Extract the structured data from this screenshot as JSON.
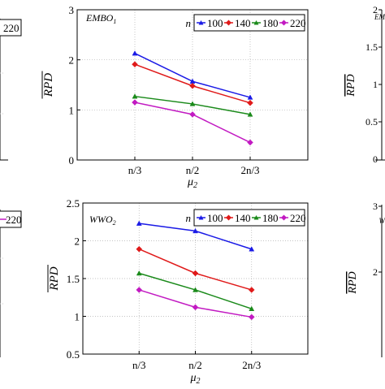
{
  "chart_data": [
    {
      "type": "line",
      "panel_label": "EMBO",
      "panel_label_sub": "1",
      "legend_title": "n",
      "xlabel": "μ",
      "xlabel_sub": "2",
      "ylabel": "RPD",
      "categories": [
        "n/3",
        "n/2",
        "2n/3"
      ],
      "ylim": [
        0,
        3
      ],
      "yticks": [
        "0",
        "1",
        "2",
        "3"
      ],
      "legend_position": "top-right",
      "series": [
        {
          "name": "100",
          "color": "#1a1ae6",
          "values": [
            2.13,
            1.57,
            1.25
          ]
        },
        {
          "name": "140",
          "color": "#e01a1a",
          "values": [
            1.91,
            1.48,
            1.14
          ]
        },
        {
          "name": "180",
          "color": "#1a8a1a",
          "values": [
            1.27,
            1.12,
            0.91
          ]
        },
        {
          "name": "220",
          "color": "#c21ac2",
          "values": [
            1.15,
            0.91,
            0.35
          ]
        }
      ]
    },
    {
      "type": "line",
      "panel_label": "WWO",
      "panel_label_sub": "2",
      "legend_title": "n",
      "xlabel": "μ",
      "xlabel_sub": "2",
      "ylabel": "RPD",
      "categories": [
        "n/3",
        "n/2",
        "2n/3"
      ],
      "ylim": [
        0.5,
        2.5
      ],
      "yticks": [
        "0.5",
        "1",
        "1.5",
        "2",
        "2.5"
      ],
      "legend_position": "top-right",
      "series": [
        {
          "name": "100",
          "color": "#1a1ae6",
          "values": [
            2.23,
            2.13,
            1.89
          ]
        },
        {
          "name": "140",
          "color": "#e01a1a",
          "values": [
            1.89,
            1.57,
            1.35
          ]
        },
        {
          "name": "180",
          "color": "#1a8a1a",
          "values": [
            1.57,
            1.35,
            1.1
          ]
        },
        {
          "name": "220",
          "color": "#c21ac2",
          "values": [
            1.35,
            1.12,
            0.99
          ]
        }
      ]
    }
  ],
  "cropped_neighbors": {
    "top_left_legend_entry": "220",
    "bottom_left_legend_entry": "220",
    "top_right_yticks": [
      "0",
      "0.5",
      "1",
      "1.5",
      "2"
    ],
    "top_right_ylabel": "RPD",
    "top_right_panel_fragment": "EM",
    "bottom_right_yticks": [
      "2",
      "3"
    ],
    "bottom_right_ylabel": "RPD",
    "bottom_right_panel_fragment": "W"
  }
}
